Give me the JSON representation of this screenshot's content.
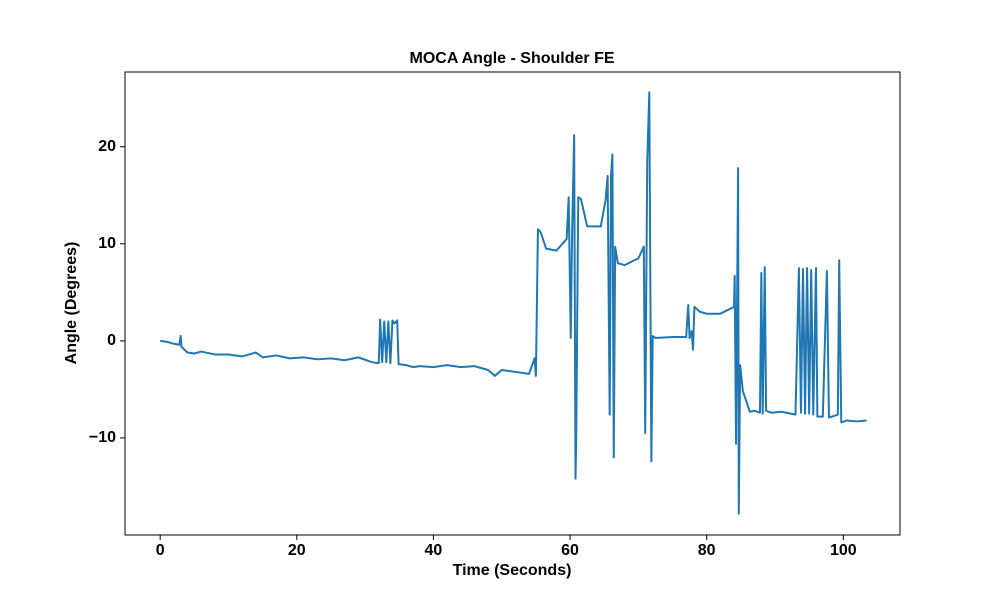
{
  "chart_data": {
    "type": "line",
    "title": "MOCA Angle - Shoulder FE",
    "x_label": "Time (Seconds)",
    "y_label": "Angle (Degrees)",
    "xlim": [
      -5.15,
      108.3
    ],
    "ylim": [
      -20.0,
      27.7
    ],
    "xticks": [
      0,
      20,
      40,
      60,
      80,
      100
    ],
    "yticks": [
      {
        "value": -10,
        "label": "−10"
      },
      0,
      10,
      20
    ],
    "grid": false,
    "series": [
      {
        "color": "#1f77b4",
        "x": [
          0,
          1,
          2,
          2.8,
          3,
          3.1,
          4,
          5,
          6,
          8,
          10,
          12,
          14,
          15,
          17,
          19,
          21,
          23,
          25,
          27,
          29,
          31,
          32,
          32.2,
          32.5,
          32.8,
          33.1,
          33.4,
          33.7,
          34,
          34.3,
          34.7,
          34.9,
          36,
          37,
          38,
          40,
          42,
          44,
          46,
          48,
          49,
          50,
          52,
          54,
          54.8,
          55,
          55.3,
          55.7,
          56.5,
          58,
          59.5,
          59.8,
          60.1,
          60.3,
          60.6,
          60.8,
          60.9,
          61.2,
          61.6,
          62.5,
          64.5,
          65.2,
          65.5,
          65.8,
          66,
          66.2,
          66.4,
          66.6,
          67,
          68,
          70,
          70.8,
          71,
          71.3,
          71.6,
          71.9,
          72.1,
          72.5,
          75,
          77,
          77.3,
          77.5,
          77.8,
          78,
          78.2,
          79,
          80,
          82,
          84,
          84.1,
          84.3,
          84.6,
          84.7,
          84.9,
          85.3,
          85.8,
          86.3,
          87,
          87.8,
          88,
          88.2,
          88.5,
          88.7,
          89.5,
          91,
          93,
          93.5,
          93.8,
          94.1,
          94.4,
          94.7,
          95,
          95.3,
          95.6,
          96,
          96.2,
          97,
          97.6,
          97.9,
          99.2,
          99.4,
          99.7,
          100.5,
          102,
          103.4
        ],
        "values": [
          0,
          -0.1,
          -0.3,
          -0.4,
          0.5,
          -0.6,
          -1.2,
          -1.3,
          -1.1,
          -1.4,
          -1.4,
          -1.6,
          -1.2,
          -1.7,
          -1.5,
          -1.8,
          -1.7,
          -1.9,
          -1.8,
          -2.0,
          -1.7,
          -2.2,
          -2.3,
          2.2,
          -2.2,
          2.0,
          -2.2,
          2.0,
          -2.3,
          2.1,
          1.8,
          2.1,
          -2.4,
          -2.5,
          -2.7,
          -2.6,
          -2.7,
          -2.5,
          -2.7,
          -2.6,
          -3.0,
          -3.6,
          -3.0,
          -3.2,
          -3.4,
          -1.8,
          -3.6,
          11.5,
          11.2,
          9.5,
          9.3,
          10.5,
          14.8,
          0.3,
          11,
          21.2,
          -14.2,
          -10.2,
          14.8,
          14.6,
          11.8,
          11.8,
          14.5,
          17,
          -7.6,
          17,
          19.2,
          -12,
          9.7,
          8,
          7.8,
          8.5,
          9.7,
          -9.5,
          18.5,
          25.6,
          -12.4,
          0.5,
          0.3,
          0.4,
          0.4,
          3.7,
          0.3,
          1.0,
          -0.9,
          3.5,
          3.0,
          2.8,
          2.8,
          3.5,
          6.7,
          -10.6,
          17.8,
          -17.8,
          -2.5,
          -5.2,
          -6.2,
          -7.3,
          -7.2,
          -7.4,
          7.0,
          -7.5,
          7.6,
          -7.2,
          -7.4,
          -7.3,
          -7.6,
          7.5,
          -7.4,
          7.4,
          -7.5,
          7.5,
          -7.5,
          7.3,
          -7.6,
          7.5,
          -7.8,
          -7.8,
          7.2,
          -7.9,
          -7.6,
          8.3,
          -8.4,
          -8.2,
          -8.3,
          -8.2
        ]
      }
    ]
  }
}
